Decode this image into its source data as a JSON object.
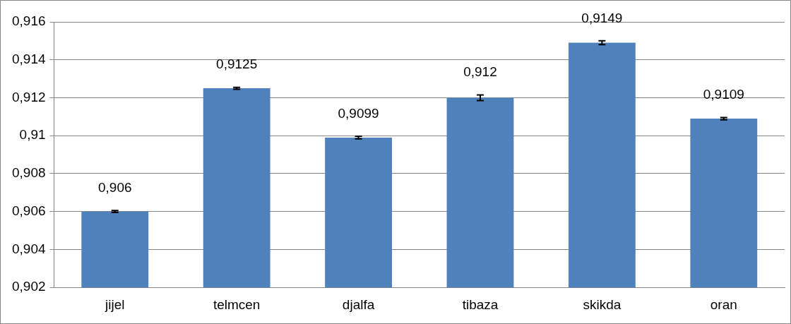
{
  "chart_data": {
    "type": "bar",
    "categories": [
      "jijel",
      "telmcen",
      "djalfa",
      "tibaza",
      "skikda",
      "oran"
    ],
    "values": [
      0.906,
      0.9125,
      0.9099,
      0.912,
      0.9149,
      0.9109
    ],
    "value_labels": [
      "0,906",
      "0,9125",
      "0,9099",
      "0,912",
      "0,9149",
      "0,9109"
    ],
    "errors": [
      5e-05,
      5e-05,
      7e-05,
      0.00015,
      0.0001,
      6e-05
    ],
    "color": "#4f81bd",
    "ylim": [
      0.902,
      0.916
    ],
    "yticks": [
      {
        "value": 0.902,
        "label": "0,902"
      },
      {
        "value": 0.904,
        "label": "0,904"
      },
      {
        "value": 0.906,
        "label": "0,906"
      },
      {
        "value": 0.908,
        "label": "0,908"
      },
      {
        "value": 0.91,
        "label": "0,91"
      },
      {
        "value": 0.912,
        "label": "0,912"
      },
      {
        "value": 0.914,
        "label": "0,914"
      },
      {
        "value": 0.916,
        "label": "0,916"
      }
    ],
    "grid": "y",
    "legend": false
  }
}
